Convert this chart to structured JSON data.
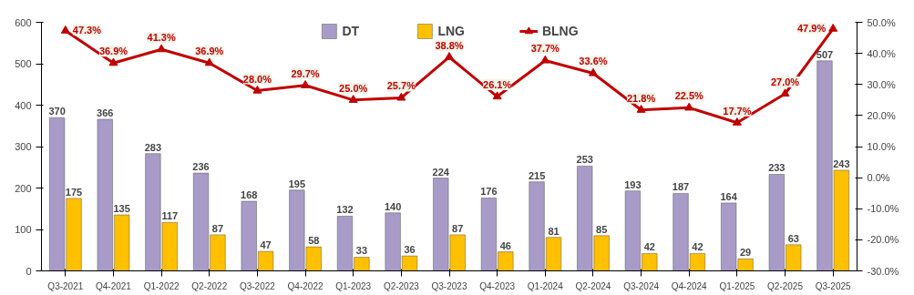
{
  "chart_data": {
    "type": "bar",
    "categories": [
      "Q3-2021",
      "Q4-2021",
      "Q1-2022",
      "Q2-2022",
      "Q3-2022",
      "Q4-2022",
      "Q1-2023",
      "Q2-2023",
      "Q3-2023",
      "Q4-2023",
      "Q1-2024",
      "Q2-2024",
      "Q3-2024",
      "Q4-2024",
      "Q1-2025",
      "Q2-2025",
      "Q3-2025"
    ],
    "series": [
      {
        "name": "DT",
        "color": "#a99bc8",
        "values": [
          370,
          366,
          283,
          236,
          168,
          195,
          132,
          140,
          224,
          176,
          215,
          253,
          193,
          187,
          164,
          233,
          507
        ]
      },
      {
        "name": "LNG",
        "color": "#ffc000",
        "values": [
          175,
          135,
          117,
          87,
          47,
          58,
          33,
          36,
          87,
          46,
          81,
          85,
          42,
          42,
          29,
          63,
          243
        ]
      },
      {
        "name": "BLNG",
        "type": "line",
        "axis": "y2",
        "color": "#c00000",
        "marker": "triangle",
        "values": [
          47.3,
          36.9,
          41.3,
          36.9,
          28.0,
          29.7,
          25.0,
          25.7,
          38.8,
          26.1,
          37.7,
          33.6,
          21.8,
          22.5,
          17.7,
          27.0,
          47.9
        ],
        "value_labels": [
          "47.3%",
          "36.9%",
          "41.3%",
          "36.9%",
          "28.0%",
          "29.7%",
          "25.0%",
          "25.7%",
          "38.8%",
          "26.1%",
          "37.7%",
          "33.6%",
          "21.8%",
          "22.5%",
          "17.7%",
          "27.0%",
          "47.9%"
        ]
      }
    ],
    "data_labels": true,
    "ylim": [
      0,
      600
    ],
    "yticks": [
      0,
      100,
      200,
      300,
      400,
      500,
      600
    ],
    "y2lim": [
      -30,
      50
    ],
    "y2ticks": [
      {
        "value": -30,
        "label": "-30.0%"
      },
      {
        "value": -20,
        "label": "-20.0%"
      },
      {
        "value": -10,
        "label": "-10.0%"
      },
      {
        "value": 0,
        "label": "0.0%"
      },
      {
        "value": 10,
        "label": "10.0%"
      },
      {
        "value": 20,
        "label": "20.0%"
      },
      {
        "value": 30,
        "label": "30.0%"
      },
      {
        "value": 40,
        "label": "40.0%"
      },
      {
        "value": 50,
        "label": "50.0%"
      }
    ],
    "grid": false,
    "legend": "top"
  }
}
